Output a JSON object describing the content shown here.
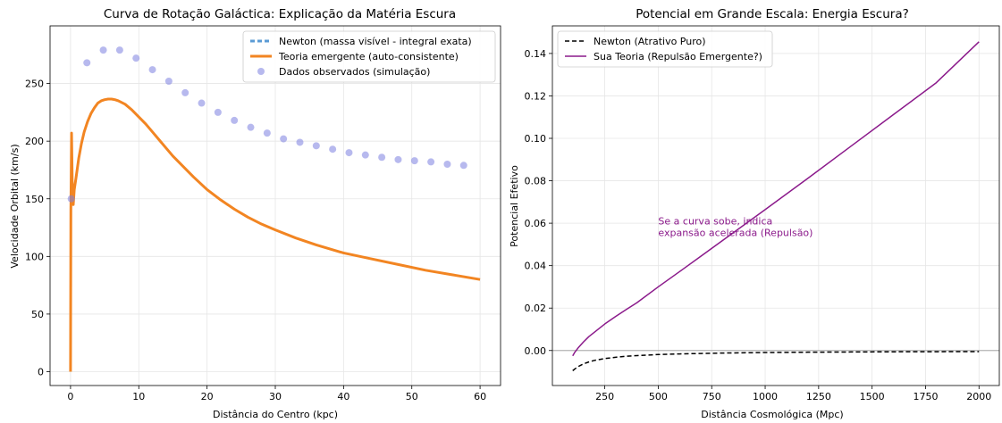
{
  "chart_data": [
    {
      "type": "line",
      "title": "Curva de Rotação Galáctica: Explicação da Matéria Escura",
      "xlabel": "Distância do Centro (kpc)",
      "ylabel": "Velocidade Orbital (km/s)",
      "xlim": [
        -3,
        63
      ],
      "ylim": [
        -12,
        300
      ],
      "xticks": [
        0,
        10,
        20,
        30,
        40,
        50,
        60
      ],
      "yticks": [
        0,
        50,
        100,
        150,
        200,
        250
      ],
      "grid": true,
      "legend_position": "top-right",
      "series": [
        {
          "name": "Newton (massa visível - integral exata)",
          "kind": "line",
          "style": "dashed",
          "color": "#5b9bd5",
          "x": [],
          "y": []
        },
        {
          "name": "Teoria emergente (auto-consistente)",
          "kind": "line",
          "style": "solid",
          "color": "#f28522",
          "x": [
            0,
            0.05,
            0.15,
            0.25,
            0.4,
            0.55,
            0.8,
            1.2,
            1.6,
            2.0,
            2.5,
            3.0,
            3.5,
            4.0,
            4.5,
            5.0,
            5.5,
            6.0,
            6.5,
            7.0,
            8.0,
            9.0,
            10.0,
            11.0,
            12.0,
            13.0,
            14.0,
            15.0,
            16.0,
            18.0,
            20.0,
            22.0,
            24.0,
            26.0,
            28.0,
            30.0,
            33.0,
            36.0,
            40.0,
            44.0,
            48.0,
            52.0,
            56.0,
            60.0
          ],
          "y": [
            0,
            140,
            207,
            165,
            145,
            158,
            168,
            185,
            198,
            208,
            217,
            224,
            229,
            233,
            235,
            236,
            236.5,
            236.5,
            236,
            235,
            232,
            227,
            221,
            215,
            208,
            201,
            194,
            187,
            181,
            169,
            158,
            149,
            141,
            134,
            128,
            123,
            116,
            110,
            103,
            98,
            93,
            88,
            84,
            80
          ]
        },
        {
          "name": "Dados observados (simulação)",
          "kind": "scatter",
          "color": "#7b7fe0",
          "x": [
            0.1,
            2.4,
            4.8,
            7.2,
            9.6,
            12.0,
            14.4,
            16.8,
            19.2,
            21.6,
            24.0,
            26.4,
            28.8,
            31.2,
            33.6,
            36.0,
            38.4,
            40.8,
            43.2,
            45.6,
            48.0,
            50.4,
            52.8,
            55.2,
            57.6
          ],
          "y": [
            150,
            268,
            279,
            279,
            272,
            262,
            252,
            242,
            233,
            225,
            218,
            212,
            207,
            202,
            199,
            196,
            193,
            190,
            188,
            186,
            184,
            183,
            182,
            180,
            179
          ]
        }
      ]
    },
    {
      "type": "line",
      "title": "Potencial em Grande Escala: Energia Escura?",
      "xlabel": "Distância Cosmológica (Mpc)",
      "ylabel": "Potencial Efetivo",
      "xlim": [
        5,
        2095
      ],
      "ylim": [
        -0.0165,
        0.153
      ],
      "xticks": [
        250,
        500,
        750,
        1000,
        1250,
        1500,
        1750,
        2000
      ],
      "yticks": [
        0.0,
        0.02,
        0.04,
        0.06,
        0.08,
        0.1,
        0.12,
        0.14
      ],
      "ytick_labels": [
        "0.00",
        "0.02",
        "0.04",
        "0.06",
        "0.08",
        "0.10",
        "0.12",
        "0.14"
      ],
      "grid": true,
      "legend_position": "top-left",
      "zero_line": true,
      "annotation": {
        "lines": [
          "Se a curva sobe, indica",
          "expansão acelerada (Repulsão)"
        ],
        "x": 500,
        "y": 0.0535,
        "color": "#8b1a8b"
      },
      "series": [
        {
          "name": "Newton (Atrativo Puro)",
          "kind": "line",
          "style": "dashed",
          "color": "#000000",
          "x": [
            100,
            110,
            125,
            150,
            175,
            200,
            250,
            300,
            350,
            400,
            500,
            600,
            700,
            800,
            1000,
            1200,
            1400,
            1600,
            1800,
            2000
          ],
          "y": [
            -0.0095,
            -0.0087,
            -0.0076,
            -0.0063,
            -0.0054,
            -0.0047,
            -0.0038,
            -0.0032,
            -0.0027,
            -0.0024,
            -0.0019,
            -0.0016,
            -0.0014,
            -0.0012,
            -0.00095,
            -0.0008,
            -0.0007,
            -0.0006,
            -0.00055,
            -0.0005
          ]
        },
        {
          "name": "Sua Teoria (Repulsão Emergente?)",
          "kind": "line",
          "style": "solid",
          "color": "#8b1a8b",
          "x": [
            100,
            110,
            125,
            150,
            175,
            200,
            250,
            300,
            350,
            400,
            500,
            600,
            700,
            800,
            1000,
            1200,
            1400,
            1600,
            1800,
            2000
          ],
          "y": [
            -0.0025,
            -0.0008,
            0.0012,
            0.004,
            0.0065,
            0.0085,
            0.0125,
            0.016,
            0.0193,
            0.0225,
            0.03,
            0.0372,
            0.0445,
            0.0518,
            0.0664,
            0.0812,
            0.0962,
            0.1112,
            0.1262,
            0.1455
          ]
        }
      ]
    }
  ]
}
